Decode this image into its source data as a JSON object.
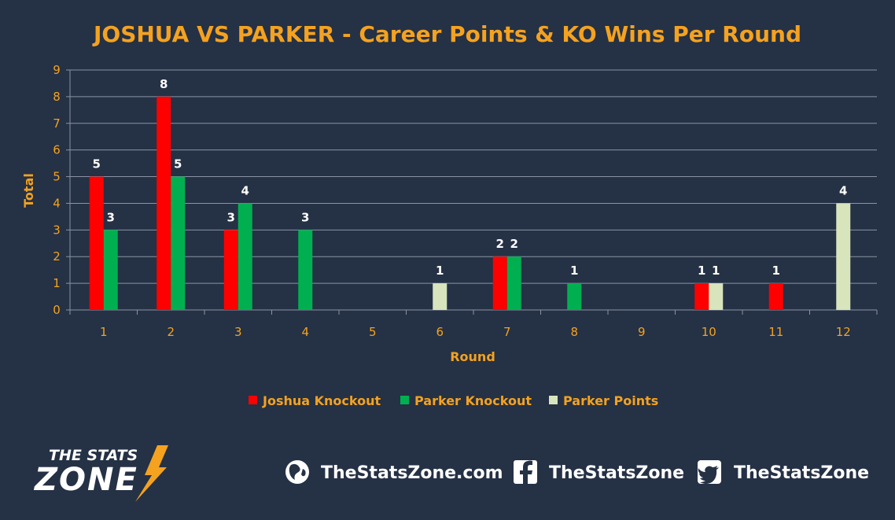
{
  "colors": {
    "background": "#253145",
    "accent": "#F4A21F",
    "grid": "#8A94A3",
    "joshua_ko": "#FF0000",
    "parker_ko": "#00B050",
    "parker_points": "#D8E4BC"
  },
  "chart_data": {
    "type": "bar",
    "title": "JOSHUA VS PARKER - Career Points & KO Wins Per Round",
    "xlabel": "Round",
    "ylabel": "Total",
    "ylim": [
      0,
      9
    ],
    "yticks": [
      "0",
      "1",
      "2",
      "3",
      "4",
      "5",
      "6",
      "7",
      "8",
      "9"
    ],
    "categories": [
      "1",
      "2",
      "3",
      "4",
      "5",
      "6",
      "7",
      "8",
      "9",
      "10",
      "11",
      "12"
    ],
    "grid": true,
    "legend_position": "bottom",
    "series": [
      {
        "name": "Joshua Knockout",
        "color": "#FF0000",
        "values": [
          5,
          8,
          3,
          0,
          0,
          0,
          2,
          0,
          0,
          1,
          1,
          0
        ]
      },
      {
        "name": "Parker Knockout",
        "color": "#00B050",
        "values": [
          3,
          5,
          4,
          3,
          0,
          0,
          2,
          1,
          0,
          0,
          0,
          0
        ]
      },
      {
        "name": "Parker Points",
        "color": "#D8E4BC",
        "values": [
          0,
          0,
          0,
          0,
          0,
          1,
          0,
          0,
          0,
          1,
          0,
          4
        ]
      }
    ]
  },
  "footer": {
    "logo_line1": "THE STATS",
    "logo_line2": "ZONE",
    "website": "TheStatsZone.com",
    "facebook": "TheStatsZone",
    "twitter": "TheStatsZone",
    "icons": [
      "globe-icon",
      "facebook-icon",
      "twitter-icon"
    ]
  }
}
